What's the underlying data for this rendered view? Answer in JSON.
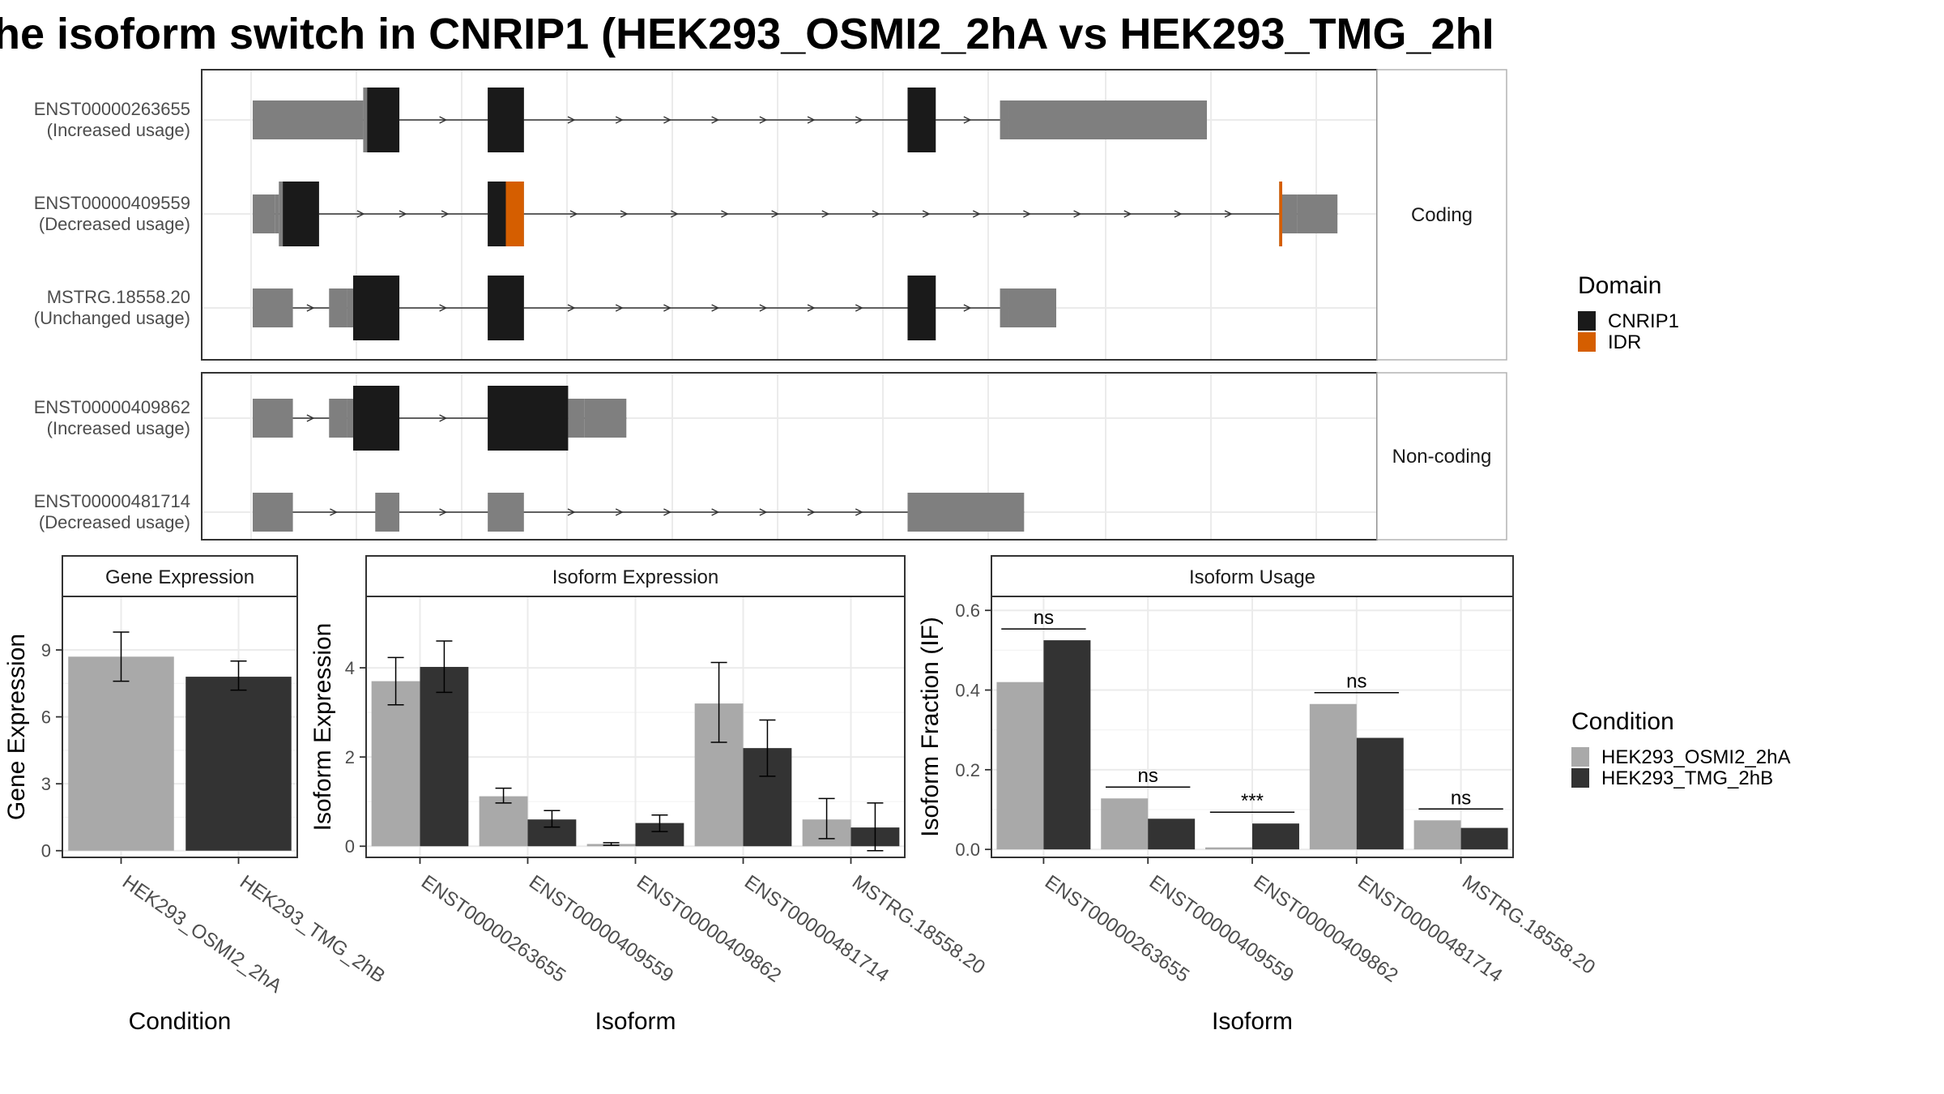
{
  "title": "he isoform switch in CNRIP1 (HEK293_OSMI2_2hA vs HEK293_TMG_2hI",
  "colors": {
    "CNRIP1": "#1a1a1a",
    "IDR": "#d55e00",
    "utr": "#7f7f7f",
    "HEK293_OSMI2_2hA": "#a9a9a9",
    "HEK293_TMG_2hB": "#333333",
    "grid": "#ebebeb",
    "strip_bg": "#ffffff",
    "intron": "#333333"
  },
  "structure": {
    "panels": [
      {
        "label": "Coding",
        "transcripts": [
          {
            "id": "ENST00000263655",
            "usage": "(Increased usage)",
            "utr": [
              [
                0,
                100
              ],
              [
                100,
                110
              ],
              [
                744,
                752
              ],
              [
                752,
                950
              ]
            ],
            "cds": [
              [
                110,
                146
              ],
              [
                234,
                270
              ],
              [
                652,
                680
              ]
            ],
            "domains": [
              {
                "name": "CNRIP1",
                "start": 114,
                "end": 146
              },
              {
                "name": "CNRIP1",
                "start": 234,
                "end": 270
              },
              {
                "name": "CNRIP1",
                "start": 652,
                "end": 680
              }
            ]
          },
          {
            "id": "ENST00000409559",
            "usage": "(Decreased usage)",
            "utr": [
              [
                0,
                22
              ],
              [
                22,
                26
              ],
              [
                1025,
                1040
              ],
              [
                1040,
                1080
              ]
            ],
            "cds": [
              [
                26,
                66
              ],
              [
                234,
                270
              ],
              [
                1022,
                1025
              ]
            ],
            "domains": [
              {
                "name": "CNRIP1",
                "start": 30,
                "end": 66
              },
              {
                "name": "CNRIP1",
                "start": 234,
                "end": 252
              },
              {
                "name": "IDR",
                "start": 252,
                "end": 270
              },
              {
                "name": "IDR",
                "start": 1022,
                "end": 1025
              }
            ]
          },
          {
            "id": "MSTRG.18558.20",
            "usage": "(Unchanged usage)",
            "utr": [
              [
                0,
                40
              ],
              [
                76,
                94
              ],
              [
                94,
                100
              ],
              [
                744,
                752
              ],
              [
                752,
                800
              ]
            ],
            "cds": [
              [
                100,
                146
              ],
              [
                234,
                270
              ],
              [
                652,
                680
              ]
            ],
            "domains": [
              {
                "name": "CNRIP1",
                "start": 100,
                "end": 146
              },
              {
                "name": "CNRIP1",
                "start": 234,
                "end": 270
              },
              {
                "name": "CNRIP1",
                "start": 652,
                "end": 680
              }
            ]
          }
        ]
      },
      {
        "label": "Non-coding",
        "transcripts": [
          {
            "id": "ENST00000409862",
            "usage": "(Increased usage)",
            "utr": [
              [
                0,
                40
              ],
              [
                76,
                94
              ],
              [
                94,
                100
              ],
              [
                314,
                330
              ],
              [
                330,
                372
              ]
            ],
            "cds": [
              [
                100,
                146
              ],
              [
                234,
                314
              ]
            ],
            "domains": [
              {
                "name": "CNRIP1",
                "start": 100,
                "end": 146
              },
              {
                "name": "CNRIP1",
                "start": 234,
                "end": 314
              }
            ]
          },
          {
            "id": "ENST00000481714",
            "usage": "(Decreased usage)",
            "utr": [
              [
                0,
                40
              ],
              [
                122,
                146
              ],
              [
                234,
                270
              ],
              [
                652,
                768
              ]
            ],
            "cds": [],
            "domains": []
          }
        ]
      }
    ]
  },
  "domain_legend": {
    "title": "Domain",
    "items": [
      "CNRIP1",
      "IDR"
    ]
  },
  "condition_legend": {
    "title": "Condition",
    "items": [
      "HEK293_OSMI2_2hA",
      "HEK293_TMG_2hB"
    ]
  },
  "chart_data": [
    {
      "type": "bar",
      "title": "Gene Expression",
      "xlabel": "Condition",
      "ylabel": "Gene Expression",
      "categories": [
        "HEK293_OSMI2_2hA",
        "HEK293_TMG_2hB"
      ],
      "series": [
        {
          "name": "HEK293_OSMI2_2hA",
          "values": [
            8.7,
            null
          ],
          "err_low": [
            7.6,
            null
          ],
          "err_high": [
            9.8,
            null
          ]
        },
        {
          "name": "HEK293_TMG_2hB",
          "values": [
            null,
            7.8
          ],
          "err_low": [
            null,
            7.2
          ],
          "err_high": [
            null,
            8.5
          ]
        }
      ],
      "ylim": [
        -0.3,
        11.4
      ],
      "yticks": [
        0,
        3,
        6,
        9
      ],
      "grid": true
    },
    {
      "type": "bar",
      "title": "Isoform Expression",
      "xlabel": "Isoform",
      "ylabel": "Isoform Expression",
      "categories": [
        "ENST00000263655",
        "ENST00000409559",
        "ENST00000409862",
        "ENST00000481714",
        "MSTRG.18558.20"
      ],
      "series": [
        {
          "name": "HEK293_OSMI2_2hA",
          "values": [
            3.7,
            1.12,
            0.05,
            3.2,
            0.6
          ],
          "err_low": [
            3.17,
            0.97,
            0.02,
            2.33,
            0.17
          ],
          "err_high": [
            4.23,
            1.3,
            0.08,
            4.12,
            1.07
          ]
        },
        {
          "name": "HEK293_TMG_2hB",
          "values": [
            4.02,
            0.6,
            0.52,
            2.2,
            0.42
          ],
          "err_low": [
            3.45,
            0.43,
            0.33,
            1.57,
            -0.1
          ],
          "err_high": [
            4.6,
            0.8,
            0.7,
            2.83,
            0.97
          ]
        }
      ],
      "ylim": [
        -0.25,
        5.6
      ],
      "yticks": [
        0,
        2,
        4
      ],
      "grid": true
    },
    {
      "type": "bar",
      "title": "Isoform Usage",
      "xlabel": "Isoform",
      "ylabel": "Isoform Fraction (IF)",
      "categories": [
        "ENST00000263655",
        "ENST00000409559",
        "ENST00000409862",
        "ENST00000481714",
        "MSTRG.18558.20"
      ],
      "series": [
        {
          "name": "HEK293_OSMI2_2hA",
          "values": [
            0.42,
            0.128,
            0.005,
            0.365,
            0.073
          ]
        },
        {
          "name": "HEK293_TMG_2hB",
          "values": [
            0.525,
            0.077,
            0.065,
            0.28,
            0.054
          ]
        }
      ],
      "significance": [
        "ns",
        "ns",
        "***",
        "ns",
        "ns"
      ],
      "ylim": [
        -0.02,
        0.635
      ],
      "yticks": [
        0.0,
        0.2,
        0.4,
        0.6
      ],
      "ytick_labels": [
        "0.0",
        "0.2",
        "0.4",
        "0.6"
      ],
      "grid": true
    }
  ]
}
